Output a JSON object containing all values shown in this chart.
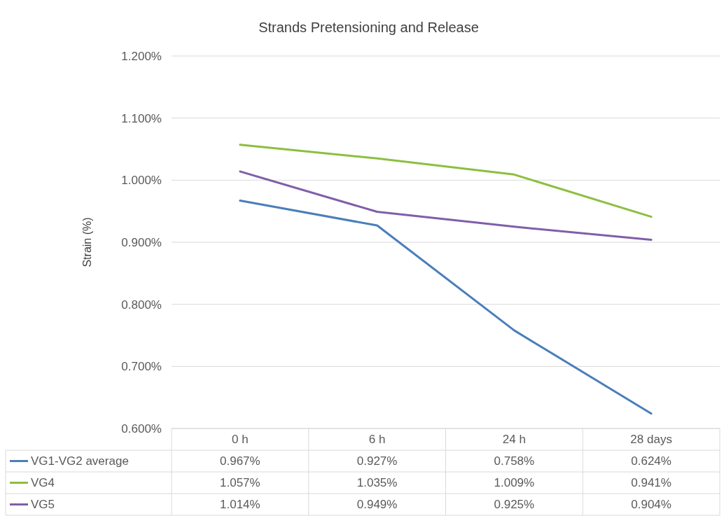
{
  "chart_data": {
    "type": "line",
    "title": "Strands Pretensioning and Release",
    "ylabel": "Strain (%)",
    "categories": [
      "0 h",
      "6 h",
      "24 h",
      "28 days"
    ],
    "ylim": [
      0.6,
      1.2
    ],
    "yticks": [
      {
        "value": 0.6,
        "label": "0.600%"
      },
      {
        "value": 0.7,
        "label": "0.700%"
      },
      {
        "value": 0.8,
        "label": "0.800%"
      },
      {
        "value": 0.9,
        "label": "0.900%"
      },
      {
        "value": 1.0,
        "label": "1.000%"
      },
      {
        "value": 1.1,
        "label": "1.100%"
      },
      {
        "value": 1.2,
        "label": "1.200%"
      }
    ],
    "grid": "y",
    "legend": "bottom",
    "marker": "none",
    "line_style": "solid",
    "series": [
      {
        "name": "VG1-VG2 average",
        "color": "#4a7ebb",
        "values": [
          0.967,
          0.927,
          0.758,
          0.624
        ],
        "value_labels": [
          "0.967%",
          "0.927%",
          "0.758%",
          "0.624%"
        ]
      },
      {
        "name": "VG4",
        "color": "#8cbf3f",
        "values": [
          1.057,
          1.035,
          1.009,
          0.941
        ],
        "value_labels": [
          "1.057%",
          "1.035%",
          "1.009%",
          "0.941%"
        ]
      },
      {
        "name": "VG5",
        "color": "#7f5fa8",
        "values": [
          1.014,
          0.949,
          0.925,
          0.904
        ],
        "value_labels": [
          "1.014%",
          "0.949%",
          "0.925%",
          "0.904%"
        ]
      }
    ]
  }
}
